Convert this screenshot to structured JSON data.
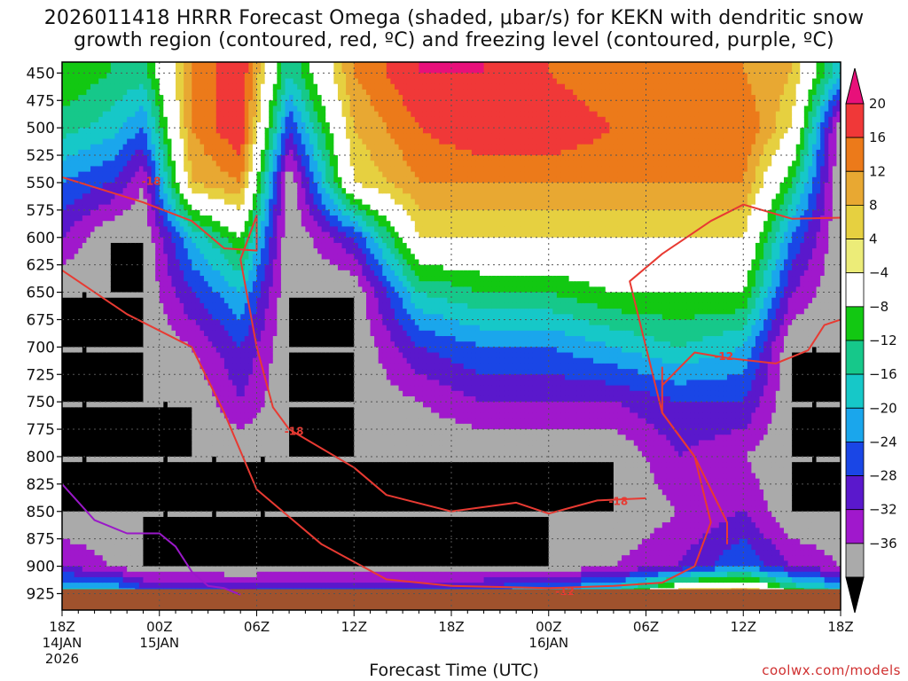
{
  "title_line1": "2026011418 HRRR Forecast Omega (shaded, μbar/s) for KEKN with dendritic snow",
  "title_line2": "growth region (contoured, red, ºC) and freezing level (contoured, purple, ºC)",
  "xaxis_title": "Forecast Time (UTC)",
  "credit": "coolwx.com/models",
  "chart_data": {
    "type": "heatmap",
    "title": "2026011418 HRRR Forecast Omega (shaded, μbar/s) for KEKN with dendritic snow growth region (contoured, red, ºC) and freezing level (contoured, purple, ºC)",
    "xlabel": "Forecast Time (UTC)",
    "ylabel": "",
    "y_axis": {
      "reversed": true,
      "range": [
        440,
        940
      ],
      "ticks": [
        450,
        475,
        500,
        525,
        550,
        575,
        600,
        625,
        650,
        675,
        700,
        725,
        750,
        775,
        800,
        825,
        850,
        875,
        900,
        925
      ]
    },
    "x_axis": {
      "range_hours": [
        0,
        48
      ],
      "ticks": [
        {
          "hour": 0,
          "label": "18Z",
          "sub1": "14JAN",
          "sub2": "2026"
        },
        {
          "hour": 6,
          "label": "00Z",
          "sub1": "15JAN",
          "sub2": ""
        },
        {
          "hour": 12,
          "label": "06Z",
          "sub1": "",
          "sub2": ""
        },
        {
          "hour": 18,
          "label": "12Z",
          "sub1": "",
          "sub2": ""
        },
        {
          "hour": 24,
          "label": "18Z",
          "sub1": "",
          "sub2": ""
        },
        {
          "hour": 30,
          "label": "00Z",
          "sub1": "16JAN",
          "sub2": ""
        },
        {
          "hour": 36,
          "label": "06Z",
          "sub1": "",
          "sub2": ""
        },
        {
          "hour": 42,
          "label": "12Z",
          "sub1": "",
          "sub2": ""
        },
        {
          "hour": 48,
          "label": "18Z",
          "sub1": "",
          "sub2": ""
        }
      ]
    },
    "grid": true,
    "colorbar": {
      "labels": [
        "20",
        "16",
        "12",
        "8",
        "4",
        "−4",
        "−8",
        "−12",
        "−16",
        "−20",
        "−24",
        "−28",
        "−32",
        "−36"
      ],
      "colors": [
        "#e8107a",
        "#f03838",
        "#ec7a1a",
        "#e8a832",
        "#e6d040",
        "#ecec78",
        "#ffffff",
        "#12c812",
        "#16c88a",
        "#16c8c8",
        "#1aa6ec",
        "#1a46e6",
        "#5a18cc",
        "#a018cc",
        "#aaaaaa",
        "#000000"
      ]
    },
    "omega_levels": [
      -36,
      -32,
      -28,
      -24,
      -20,
      -16,
      -12,
      -8,
      -4,
      4,
      8,
      12,
      16,
      20
    ],
    "omega_columns": [
      {
        "hour": 0,
        "profile": [
          -4,
          -10,
          -20,
          -28,
          -36,
          -36,
          -36,
          -36,
          -36,
          -28,
          -12
        ]
      },
      {
        "hour": 3,
        "profile": [
          -8,
          -14,
          -24,
          -36,
          -36,
          -36,
          -36,
          -36,
          -36,
          -32,
          -12
        ]
      },
      {
        "hour": 5,
        "profile": [
          -10,
          -20,
          -32,
          -36,
          -36,
          -36,
          -36,
          -36,
          -36,
          -36,
          -20
        ]
      },
      {
        "hour": 8,
        "profile": [
          12,
          12,
          8,
          -16,
          -24,
          -32,
          -36,
          -36,
          -36,
          -36,
          -20
        ]
      },
      {
        "hour": 11,
        "profile": [
          20,
          20,
          12,
          -4,
          -16,
          -24,
          -28,
          -36,
          -36,
          -36,
          -24
        ]
      },
      {
        "hour": 14,
        "profile": [
          -12,
          -24,
          -36,
          -36,
          -36,
          -36,
          -36,
          -36,
          -36,
          -36,
          -20
        ]
      },
      {
        "hour": 18,
        "profile": [
          12,
          8,
          4,
          -24,
          -36,
          -36,
          -36,
          -36,
          -36,
          -36,
          -20
        ]
      },
      {
        "hour": 22,
        "profile": [
          20,
          16,
          12,
          4,
          -12,
          -24,
          -32,
          -36,
          -36,
          -36,
          -20
        ]
      },
      {
        "hour": 26,
        "profile": [
          20,
          20,
          12,
          4,
          -8,
          -20,
          -28,
          -36,
          -36,
          -36,
          -20
        ]
      },
      {
        "hour": 30,
        "profile": [
          16,
          20,
          12,
          4,
          -8,
          -20,
          -28,
          -36,
          -36,
          -36,
          -16
        ]
      },
      {
        "hour": 34,
        "profile": [
          12,
          16,
          12,
          4,
          -4,
          -16,
          -28,
          -36,
          -36,
          -32,
          -12
        ]
      },
      {
        "hour": 38,
        "profile": [
          12,
          12,
          12,
          4,
          -4,
          -12,
          -24,
          -28,
          -32,
          -28,
          8
        ]
      },
      {
        "hour": 42,
        "profile": [
          12,
          16,
          12,
          4,
          -4,
          -16,
          -24,
          -32,
          -28,
          -20,
          12
        ]
      },
      {
        "hour": 45,
        "profile": [
          8,
          4,
          -8,
          -20,
          -28,
          -36,
          -36,
          -36,
          -36,
          -28,
          -4
        ]
      },
      {
        "hour": 48,
        "profile": [
          -16,
          -36,
          -36,
          -36,
          -36,
          -36,
          -36,
          -36,
          -36,
          -32,
          -12
        ]
      }
    ],
    "omega_column_levels": [
      450,
      500,
      550,
      600,
      650,
      700,
      750,
      800,
      850,
      900,
      925
    ],
    "dgz_contours": [
      {
        "value": -18,
        "label": "-18",
        "points": [
          [
            0,
            545
          ],
          [
            5,
            568
          ],
          [
            8,
            585
          ],
          [
            10,
            610
          ],
          [
            12,
            612
          ],
          [
            12,
            580
          ],
          [
            11,
            620
          ],
          [
            12,
            700
          ],
          [
            13,
            755
          ],
          [
            14,
            775
          ],
          [
            18,
            810
          ],
          [
            20,
            835
          ],
          [
            24,
            850
          ],
          [
            28,
            842
          ],
          [
            30,
            852
          ],
          [
            33,
            840
          ],
          [
            36,
            838
          ]
        ]
      },
      {
        "value": -12,
        "label": "-12",
        "points": [
          [
            0,
            630
          ],
          [
            4,
            670
          ],
          [
            8,
            700
          ],
          [
            10,
            760
          ],
          [
            12,
            830
          ],
          [
            16,
            880
          ],
          [
            20,
            912
          ],
          [
            24,
            918
          ],
          [
            30,
            920
          ],
          [
            34,
            918
          ],
          [
            37,
            915
          ],
          [
            39,
            900
          ],
          [
            40,
            860
          ],
          [
            39,
            800
          ],
          [
            37,
            760
          ],
          [
            36,
            700
          ],
          [
            35,
            640
          ],
          [
            37,
            615
          ],
          [
            40,
            585
          ],
          [
            42,
            570
          ],
          [
            45,
            583
          ],
          [
            48,
            582
          ]
        ]
      },
      {
        "value": -12,
        "label": "-12",
        "points": [
          [
            37,
            735
          ],
          [
            39,
            705
          ],
          [
            41,
            710
          ],
          [
            44,
            715
          ],
          [
            46,
            703
          ],
          [
            47,
            680
          ],
          [
            48,
            675
          ]
        ]
      },
      {
        "value": -12,
        "label": "-12",
        "points": [
          [
            37,
            718
          ],
          [
            37,
            760
          ],
          [
            39,
            800
          ],
          [
            40,
            830
          ],
          [
            41,
            860
          ],
          [
            41,
            880
          ]
        ]
      }
    ],
    "freezing_contours": [
      {
        "value": 0,
        "label": "",
        "points": [
          [
            0,
            825
          ],
          [
            2,
            858
          ],
          [
            4,
            870
          ],
          [
            6,
            870
          ],
          [
            7,
            882
          ],
          [
            8,
            905
          ],
          [
            9,
            918
          ],
          [
            10,
            920
          ],
          [
            11,
            926
          ]
        ]
      }
    ]
  }
}
